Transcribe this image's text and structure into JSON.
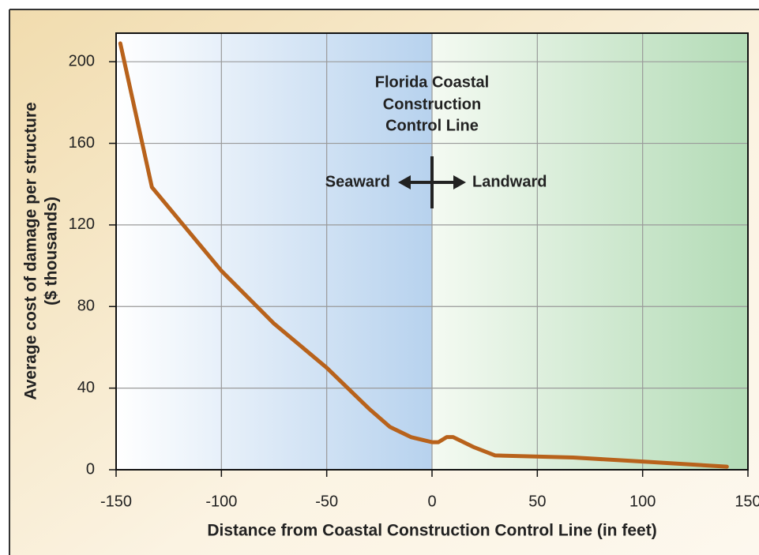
{
  "chart_data": {
    "type": "line",
    "annotations": [
      "Florida Coastal",
      "Construction",
      "Control Line",
      "Seaward",
      "Landward"
    ],
    "xlabel": "Distance from Coastal Construction Control Line (in feet)",
    "ylabel": [
      "Average cost of damage per structure",
      "($ thousands)"
    ],
    "x": [
      -148,
      -133,
      -100,
      -75,
      -50,
      -30,
      -20,
      -10,
      -2,
      0,
      3,
      7,
      10,
      20,
      30,
      67,
      100,
      140
    ],
    "series": [
      {
        "name": "Average cost of damage",
        "color": "#b8621b",
        "values": [
          209,
          138.5,
          97.5,
          71.6,
          50,
          30,
          21,
          16,
          14,
          13.5,
          13.5,
          16,
          16,
          11,
          7,
          6,
          4,
          1.5
        ]
      }
    ],
    "xlim": [
      -150,
      150
    ],
    "xticks": [
      -150,
      -100,
      -50,
      0,
      50,
      100,
      150
    ],
    "ylim": [
      0,
      214
    ],
    "yticks": [
      0,
      40,
      80,
      120,
      160,
      200
    ],
    "grid": true
  }
}
